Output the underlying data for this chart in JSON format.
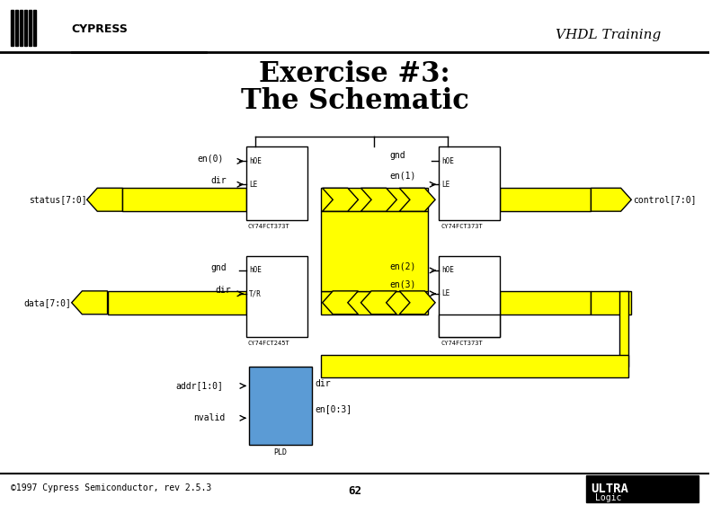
{
  "title_line1": "Exercise #3:",
  "title_line2": "The Schematic",
  "header_text": "VHDL Training",
  "footer_text": "©1997 Cypress Semiconductor, rev 2.5.3",
  "page_num": "62",
  "yellow": "#FFFF00",
  "black": "#000000",
  "white": "#FFFFFF",
  "blue": "#5B9BD5",
  "bg": "#FFFFFF",
  "chip1_label": "CY74FCT373T",
  "chip2_label": "CY74FCT373T",
  "chip3_label": "CY74FCT245T",
  "chip4_label": "CY74FCT373T",
  "pld_label": "PLD",
  "status_label": "status[7:0]",
  "control_label": "control[7:0]",
  "data_label": "data[7:0]",
  "addr_label": "addr[1:0]",
  "nvalid_label": "nvalid",
  "en0_label": "en(0)",
  "dir1_label": "dir",
  "gnd1_label": "gnd",
  "en1_label": "en(1)",
  "gnd2_label": "gnd",
  "dir2_label": "dir",
  "en2_label": "en(2)",
  "en3_label": "en(3)",
  "dir3_label": "dir",
  "en03_label": "en[0:3]"
}
